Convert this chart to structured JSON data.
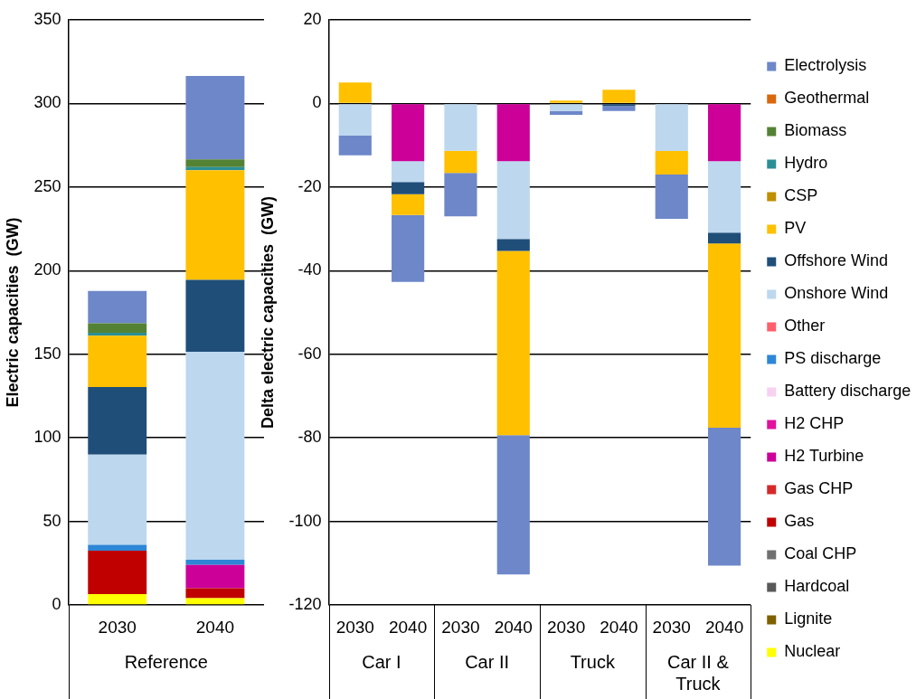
{
  "chart_data": [
    {
      "type": "bar",
      "stacked": true,
      "ylabel": "Electric capacities  (GW)",
      "categories": [
        "2030",
        "2040"
      ],
      "annotations": [
        "Reference"
      ],
      "ylim": [
        0,
        350
      ],
      "yticks": [
        0,
        50,
        100,
        150,
        200,
        250,
        300,
        350
      ],
      "grid": "y",
      "legend": false,
      "series": [
        {
          "color": "#ffff00",
          "values": [
            6.5,
            4
          ]
        },
        {
          "color": "#c00000",
          "values": [
            26,
            6
          ]
        },
        {
          "color": "#cc0099",
          "values": [
            0,
            14
          ]
        },
        {
          "color": "#2e86d6",
          "values": [
            3.5,
            3
          ]
        },
        {
          "color": "#bdd7ee",
          "values": [
            54,
            124.5
          ]
        },
        {
          "color": "#1f4e79",
          "values": [
            40.4,
            43
          ]
        },
        {
          "color": "#ffc000",
          "values": [
            30.7,
            65.5
          ]
        },
        {
          "color": "#2a8f95",
          "values": [
            1.7,
            2
          ]
        },
        {
          "color": "#548235",
          "values": [
            5.7,
            4.5
          ]
        },
        {
          "color": "#6d87c9",
          "values": [
            19.3,
            50
          ]
        }
      ]
    },
    {
      "type": "bar",
      "stacked": true,
      "ylabel": "Delta electric capacities  (GW)",
      "categories": [
        "2030",
        "2040",
        "2030",
        "2040",
        "2030",
        "2040",
        "2030",
        "2040"
      ],
      "annotations": [
        "Car I",
        "Car II",
        "Truck",
        "Car II & Truck"
      ],
      "ylim": [
        -120,
        20
      ],
      "yticks": [
        -120,
        -100,
        -80,
        -60,
        -40,
        -20,
        0,
        20
      ],
      "grid": "y",
      "legend": "right",
      "series": [
        {
          "name": "Nuclear",
          "color": "#ffff00",
          "values": [
            0,
            0,
            0,
            0,
            0,
            0,
            0,
            0
          ]
        },
        {
          "name": "Lignite",
          "color": "#7f6000",
          "values": [
            0,
            0,
            0,
            0,
            0,
            0,
            0,
            0
          ]
        },
        {
          "name": "Hardcoal",
          "color": "#595959",
          "values": [
            0,
            0,
            0,
            0,
            0,
            0,
            0,
            0
          ]
        },
        {
          "name": "Coal CHP",
          "color": "#707070",
          "values": [
            0,
            0,
            0,
            0,
            0,
            0,
            0,
            0
          ]
        },
        {
          "name": "Gas",
          "color": "#c00000",
          "values": [
            0,
            0,
            0,
            0,
            0,
            0,
            0,
            0
          ]
        },
        {
          "name": "Gas CHP",
          "color": "#d42a2a",
          "values": [
            0,
            0,
            0,
            0,
            0,
            0,
            0,
            0
          ]
        },
        {
          "name": "H2 Turbine",
          "color": "#cc0099",
          "values": [
            0,
            -13.8,
            0,
            -13.8,
            0,
            0,
            0,
            -13.8
          ]
        },
        {
          "name": "H2 CHP",
          "color": "#e0119c",
          "values": [
            0,
            0,
            0,
            0,
            0,
            0,
            0,
            0
          ]
        },
        {
          "name": "Battery discharge",
          "color": "#f8d0f0",
          "values": [
            0,
            0,
            0,
            0,
            0,
            0,
            0,
            0
          ]
        },
        {
          "name": "PS discharge",
          "color": "#2e86d6",
          "values": [
            0,
            0,
            0,
            0,
            0,
            0,
            0,
            0
          ]
        },
        {
          "name": "Other",
          "color": "#ff5f6b",
          "values": [
            0,
            0,
            0,
            0,
            0,
            0,
            0,
            0
          ]
        },
        {
          "name": "Onshore Wind",
          "color": "#bdd7ee",
          "values": [
            -7.7,
            -5,
            -11.3,
            -18.6,
            -1.8,
            0,
            -11.4,
            -17.1
          ]
        },
        {
          "name": "Offshore Wind",
          "color": "#1f4e79",
          "values": [
            0,
            -2.9,
            0,
            -2.9,
            0,
            -0.6,
            0,
            -2.6
          ]
        },
        {
          "name": "PV",
          "color": "#ffc000",
          "values": [
            5,
            -5,
            -5.3,
            -44.1,
            0.7,
            3.3,
            -5.6,
            -44.1
          ]
        },
        {
          "name": "CSP",
          "color": "#bf8f00",
          "values": [
            0,
            0,
            0,
            0,
            0,
            0,
            0,
            0
          ]
        },
        {
          "name": "Hydro",
          "color": "#2a8f95",
          "values": [
            0,
            0,
            0,
            0,
            0,
            0,
            0,
            0
          ]
        },
        {
          "name": "Biomass",
          "color": "#548235",
          "values": [
            0,
            0,
            0,
            0,
            0,
            0,
            0,
            0
          ]
        },
        {
          "name": "Geothermal",
          "color": "#d9670c",
          "values": [
            0,
            0,
            0,
            0,
            0,
            0,
            0,
            0
          ]
        },
        {
          "name": "Electrolysis",
          "color": "#6d87c9",
          "values": [
            -4.7,
            -16,
            -10.4,
            -33.3,
            -0.9,
            -1.2,
            -10.6,
            -33
          ]
        }
      ]
    }
  ]
}
